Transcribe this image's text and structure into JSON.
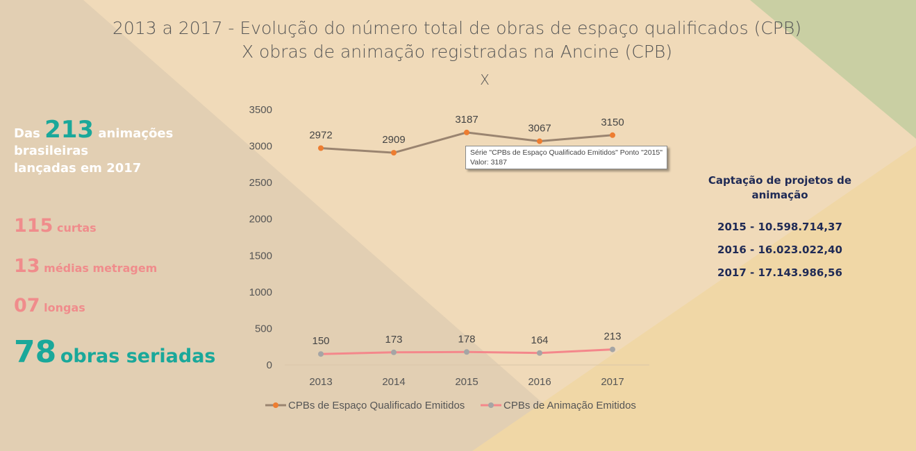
{
  "title": {
    "line1": "2013 a 2017 - Evolução do número total de obras de espaço qualificados (CPB)",
    "line2": "X obras de animação registradas na Ancine (CPB)",
    "line3": "X"
  },
  "left": {
    "intro_prefix": "Das",
    "intro_number": "213",
    "intro_suffix": "animações",
    "intro_line2": "brasileiras",
    "intro_line3": "lançadas em 2017",
    "items": [
      {
        "number": "115",
        "label": "curtas"
      },
      {
        "number": "13",
        "label": "médias metragem"
      },
      {
        "number": "07",
        "label": "longas"
      }
    ],
    "highlight": {
      "number": "78",
      "label": "obras seriadas"
    }
  },
  "right": {
    "heading": "Captação de projetos de animação",
    "rows": [
      "2015 - 10.598.714,37",
      "2016 - 16.023.022,40",
      "2017 - 17.143.986,56"
    ]
  },
  "tooltip": {
    "line1": "Série \"CPBs de Espaço Qualificado Emitidos\" Ponto \"2015\"",
    "line2": "Valor: 3187"
  },
  "colors": {
    "teal": "#1aa89a",
    "pink": "#f08c8c",
    "navy": "#1f2a55",
    "series1_line": "#9a8470",
    "series1_marker": "#ed7d31",
    "series2_line": "#f4878b",
    "series2_marker": "#a5a5a5"
  },
  "chart_data": {
    "type": "line",
    "categories": [
      "2013",
      "2014",
      "2015",
      "2016",
      "2017"
    ],
    "ylim": [
      0,
      3500
    ],
    "yticks": [
      0,
      500,
      1000,
      1500,
      2000,
      2500,
      3000,
      3500
    ],
    "grid": false,
    "legend": "bottom",
    "series": [
      {
        "name": "CPBs de Espaço Qualificado Emitidos",
        "values": [
          2972,
          2909,
          3187,
          3067,
          3150
        ]
      },
      {
        "name": "CPBs de Animação Emitidos",
        "values": [
          150,
          173,
          178,
          164,
          213
        ]
      }
    ]
  }
}
